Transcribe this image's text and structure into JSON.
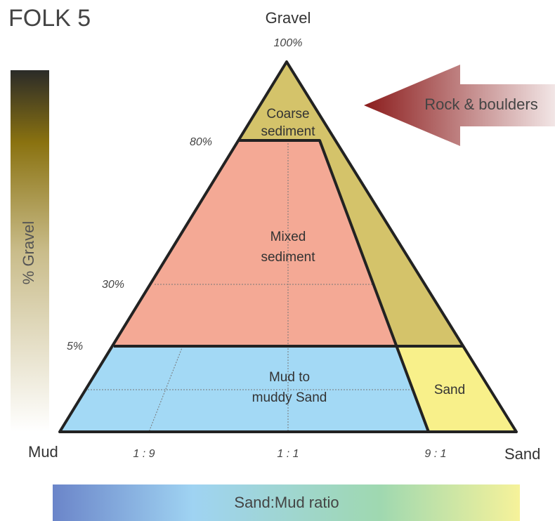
{
  "title": "FOLK 5",
  "vertices": {
    "top": "Gravel",
    "left": "Mud",
    "right": "Sand"
  },
  "apex_percent": "100%",
  "gravel_levels": [
    "80%",
    "30%",
    "5%"
  ],
  "ratios": [
    "1 : 9",
    "1 : 1",
    "9 : 1"
  ],
  "regions": {
    "coarse": [
      "Coarse",
      "sediment"
    ],
    "mixed": [
      "Mixed",
      "sediment"
    ],
    "mud": [
      "Mud to",
      "muddy Sand"
    ],
    "sand": [
      "Sand"
    ]
  },
  "left_axis": "% Gravel",
  "bottom_axis": "Sand:Mud ratio",
  "arrow": "Rock & boulders"
}
